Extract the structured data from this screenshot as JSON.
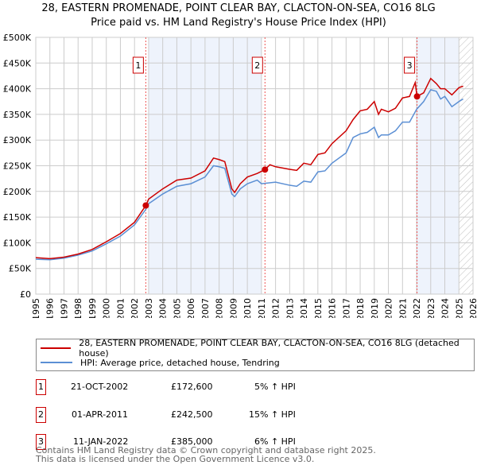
{
  "chart_data": {
    "type": "line",
    "title": "28, EASTERN PROMENADE, POINT CLEAR BAY, CLACTON-ON-SEA, CO16 8LG",
    "subtitle": "Price paid vs. HM Land Registry's House Price Index (HPI)",
    "xlim": [
      1995,
      2026
    ],
    "ylim": [
      0,
      500000
    ],
    "x_ticks": [
      "1995",
      "1996",
      "1997",
      "1998",
      "1999",
      "2000",
      "2001",
      "2002",
      "2003",
      "2004",
      "2005",
      "2006",
      "2007",
      "2008",
      "2009",
      "2010",
      "2011",
      "2012",
      "2013",
      "2014",
      "2015",
      "2016",
      "2017",
      "2018",
      "2019",
      "2020",
      "2021",
      "2022",
      "2023",
      "2024",
      "2025",
      "2026"
    ],
    "y_ticks": [
      {
        "v": 0,
        "label": "£0"
      },
      {
        "v": 50000,
        "label": "£50K"
      },
      {
        "v": 100000,
        "label": "£100K"
      },
      {
        "v": 150000,
        "label": "£150K"
      },
      {
        "v": 200000,
        "label": "£200K"
      },
      {
        "v": 250000,
        "label": "£250K"
      },
      {
        "v": 300000,
        "label": "£300K"
      },
      {
        "v": 350000,
        "label": "£350K"
      },
      {
        "v": 400000,
        "label": "£400K"
      },
      {
        "v": 450000,
        "label": "£450K"
      },
      {
        "v": 500000,
        "label": "£500K"
      }
    ],
    "shaded_ranges": [
      [
        2003.0,
        2011.0
      ],
      [
        2022.0,
        2025.0
      ]
    ],
    "forecast_from": 2025.0,
    "series": [
      {
        "name": "28, EASTERN PROMENADE, POINT CLEAR BAY, CLACTON-ON-SEA, CO16 8LG (detached house)",
        "color": "#cc0000",
        "x": [
          1995,
          1996,
          1997,
          1998,
          1999,
          2000,
          2001,
          2002,
          2002.8,
          2003,
          2004,
          2005,
          2006,
          2007,
          2007.6,
          2008,
          2008.4,
          2008.9,
          2009.1,
          2009.5,
          2010,
          2010.7,
          2011.25,
          2011.6,
          2012,
          2013,
          2013.5,
          2014,
          2014.5,
          2015,
          2015.5,
          2016,
          2017,
          2017.5,
          2018,
          2018.5,
          2019,
          2019.3,
          2019.5,
          2020,
          2020.5,
          2021,
          2021.5,
          2021.9,
          2022.03,
          2022.5,
          2023,
          2023.4,
          2023.7,
          2024,
          2024.5,
          2025,
          2025.3
        ],
        "y": [
          71000,
          69000,
          72000,
          78000,
          87000,
          102000,
          118000,
          140000,
          172600,
          185000,
          205000,
          222000,
          226000,
          240000,
          265000,
          262000,
          258000,
          205000,
          198000,
          215000,
          228000,
          235000,
          242500,
          252000,
          248000,
          243000,
          241000,
          255000,
          252000,
          272000,
          275000,
          293000,
          318000,
          340000,
          357000,
          360000,
          375000,
          350000,
          360000,
          355000,
          362000,
          382000,
          385000,
          412000,
          385000,
          392000,
          420000,
          410000,
          400000,
          400000,
          388000,
          402000,
          405000
        ]
      },
      {
        "name": "HPI: Average price, detached house, Tendring",
        "color": "#5b8fd4",
        "x": [
          1995,
          1996,
          1997,
          1998,
          1999,
          2000,
          2001,
          2002,
          2002.8,
          2003,
          2004,
          2005,
          2006,
          2007,
          2007.6,
          2008,
          2008.4,
          2008.9,
          2009.1,
          2009.5,
          2010,
          2010.7,
          2011,
          2012,
          2013,
          2013.5,
          2014,
          2014.5,
          2015,
          2015.5,
          2016,
          2017,
          2017.5,
          2018,
          2018.5,
          2019,
          2019.3,
          2019.5,
          2020,
          2020.5,
          2021,
          2021.5,
          2022,
          2022.5,
          2023,
          2023.4,
          2023.7,
          2024,
          2024.5,
          2025,
          2025.3
        ],
        "y": [
          68000,
          67000,
          70000,
          76000,
          84000,
          98000,
          113000,
          135000,
          165000,
          176000,
          195000,
          210000,
          215000,
          228000,
          250000,
          248000,
          245000,
          195000,
          190000,
          205000,
          215000,
          222000,
          215000,
          218000,
          212000,
          210000,
          220000,
          218000,
          238000,
          240000,
          255000,
          275000,
          305000,
          312000,
          315000,
          325000,
          305000,
          310000,
          310000,
          318000,
          335000,
          335000,
          360000,
          375000,
          398000,
          395000,
          380000,
          385000,
          365000,
          375000,
          380000
        ]
      }
    ],
    "sales": [
      {
        "num": "1",
        "x": 2002.8,
        "y": 172600,
        "date": "21-OCT-2002",
        "price": "£172,600",
        "hpi": "5% ↑ HPI"
      },
      {
        "num": "2",
        "x": 2011.25,
        "y": 242500,
        "date": "01-APR-2011",
        "price": "£242,500",
        "hpi": "15% ↑ HPI"
      },
      {
        "num": "3",
        "x": 2022.03,
        "y": 385000,
        "date": "11-JAN-2022",
        "price": "£385,000",
        "hpi": "6% ↑ HPI"
      }
    ]
  },
  "legend": {
    "red": "28, EASTERN PROMENADE, POINT CLEAR BAY, CLACTON-ON-SEA, CO16 8LG (detached house)",
    "blue": "HPI: Average price, detached house, Tendring"
  },
  "footer": {
    "line1": "Contains HM Land Registry data © Crown copyright and database right 2025.",
    "line2": "This data is licensed under the Open Government Licence v3.0."
  }
}
